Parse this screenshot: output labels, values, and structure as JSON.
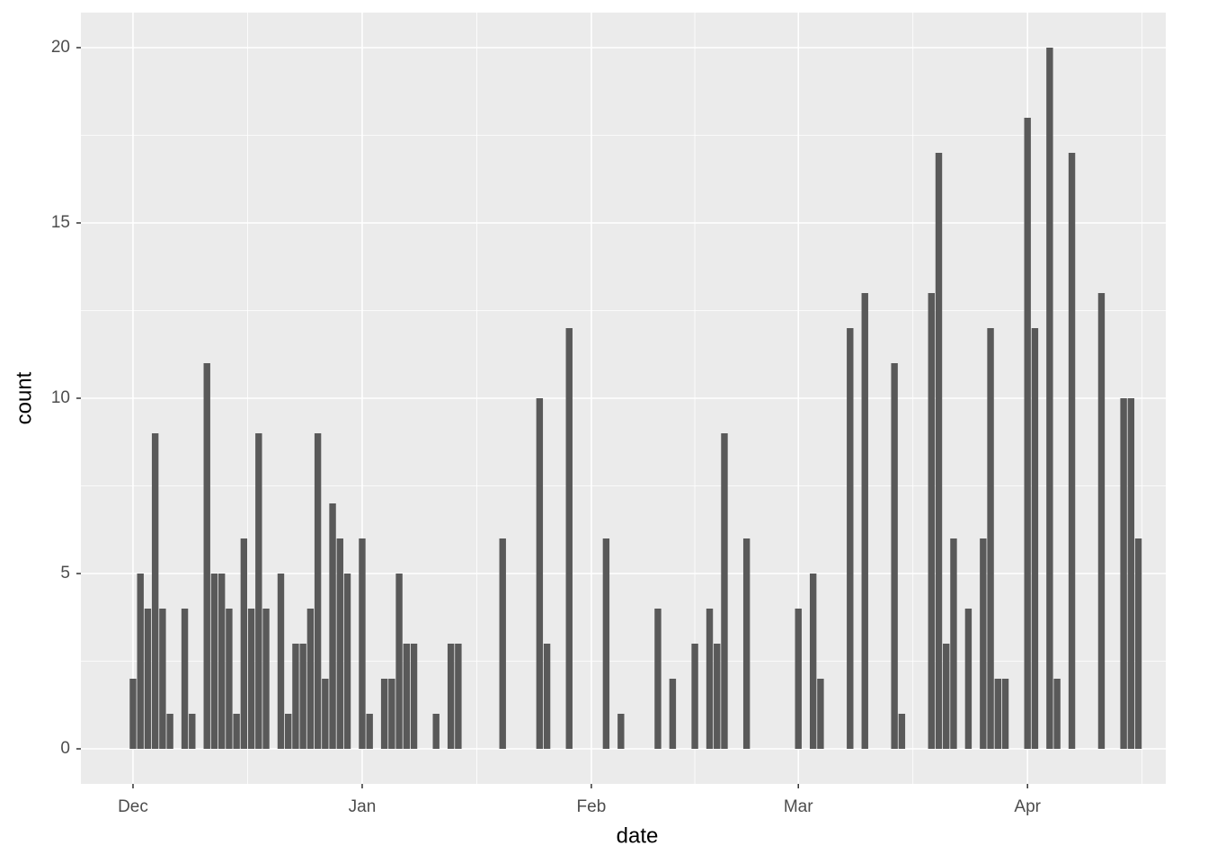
{
  "chart_data": {
    "type": "bar",
    "x_label": "date",
    "y_label": "count",
    "x": [
      0,
      1,
      2,
      3,
      4,
      5,
      7,
      8,
      10,
      11,
      12,
      13,
      14,
      15,
      16,
      17,
      18,
      20,
      21,
      22,
      23,
      24,
      25,
      26,
      27,
      28,
      29,
      31,
      32,
      34,
      35,
      36,
      37,
      38,
      41,
      43,
      44,
      50,
      55,
      56,
      59,
      64,
      66,
      71,
      73,
      76,
      78,
      79,
      80,
      83,
      90,
      92,
      93,
      97,
      99,
      103,
      104,
      108,
      109,
      110,
      111,
      113,
      115,
      116,
      117,
      118,
      121,
      122,
      124,
      125,
      127,
      131,
      134,
      135,
      136
    ],
    "values": [
      2,
      5,
      4,
      9,
      4,
      1,
      4,
      1,
      11,
      5,
      5,
      4,
      1,
      6,
      4,
      9,
      4,
      5,
      1,
      3,
      3,
      4,
      9,
      2,
      7,
      6,
      5,
      6,
      1,
      2,
      2,
      5,
      3,
      3,
      1,
      3,
      3,
      6,
      10,
      3,
      12,
      6,
      1,
      4,
      2,
      3,
      4,
      3,
      9,
      6,
      4,
      5,
      2,
      12,
      13,
      11,
      1,
      13,
      17,
      3,
      6,
      4,
      6,
      12,
      2,
      2,
      18,
      12,
      20,
      2,
      17,
      13,
      10,
      10,
      6
    ],
    "color": "#595959",
    "xlim": [
      -7.05,
      139.7
    ],
    "xticks": [
      {
        "value": 0,
        "label": "Dec"
      },
      {
        "value": 31,
        "label": "Jan"
      },
      {
        "value": 62,
        "label": "Feb"
      },
      {
        "value": 90,
        "label": "Mar"
      },
      {
        "value": 121,
        "label": "Apr"
      }
    ],
    "ylim": [
      -1,
      21
    ],
    "yticks": [
      0,
      5,
      10,
      15,
      20
    ],
    "grid": true
  }
}
